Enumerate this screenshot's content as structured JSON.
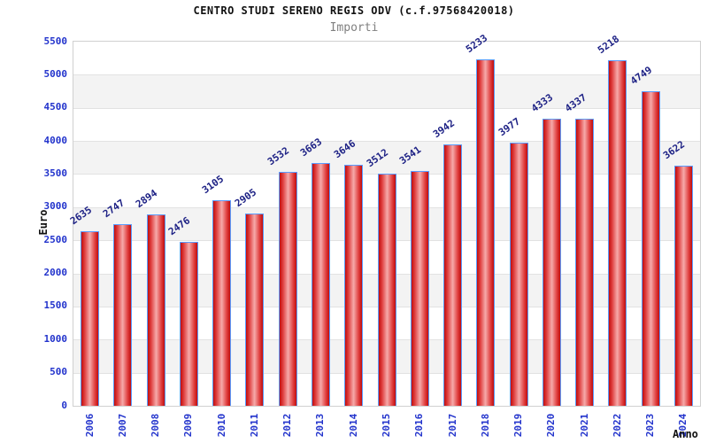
{
  "chart_data": {
    "type": "bar",
    "title": "CENTRO STUDI SERENO REGIS ODV (c.f.97568420018)",
    "subtitle": "Importi",
    "xlabel": "Anno",
    "ylabel": "Euro",
    "categories": [
      "2006",
      "2007",
      "2008",
      "2009",
      "2010",
      "2011",
      "2012",
      "2013",
      "2014",
      "2015",
      "2016",
      "2017",
      "2018",
      "2019",
      "2020",
      "2021",
      "2022",
      "2023",
      "2024"
    ],
    "values": [
      2635,
      2747,
      2894,
      2476,
      3105,
      2905,
      3532,
      3663,
      3646,
      3512,
      3541,
      3942,
      5233,
      3977,
      4333,
      4337,
      5218,
      4749,
      3622
    ],
    "ylim": [
      0,
      5500
    ],
    "ytick_step": 500,
    "yticks": [
      "5500",
      "5000",
      "4500",
      "4000",
      "3500",
      "3000",
      "2500",
      "2000",
      "1500",
      "1000",
      "500",
      "0"
    ],
    "grid": true,
    "legend": "none",
    "band_pattern": "alternating 500-unit horizontal bands, gray on 500-1000, 1500-2000, 2500-3000, 3500-4000, 4500-5000",
    "colors": {
      "bar_edge": "#c00d0d",
      "bar_mid": "#e04040",
      "bar_center": "#f6aaaa",
      "bar_border": "#5a9cff",
      "tick_label": "#2233cc",
      "value_label": "#1d2185",
      "band_gray": "#f3f3f3",
      "gridline": "#e2e2e2",
      "frame": "#d0d0d0",
      "title_color": "#111111",
      "subtitle_color": "#808080",
      "axis_title_color": "#111111",
      "background": "#ffffff"
    }
  }
}
